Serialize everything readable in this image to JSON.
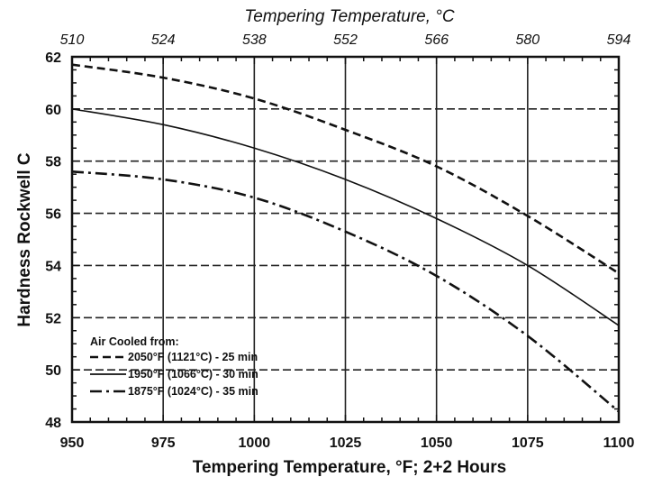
{
  "chart_data": {
    "type": "line",
    "xlabel": "Tempering Temperature, °F; 2+2 Hours",
    "ylabel": "Hardness Rockwell C",
    "top_xlabel": "Tempering Temperature, °C",
    "xlim": [
      950,
      1100
    ],
    "ylim": [
      48,
      62
    ],
    "x_ticks": [
      "950",
      "975",
      "1000",
      "1025",
      "1050",
      "1075",
      "1100"
    ],
    "y_ticks": [
      "48",
      "50",
      "52",
      "54",
      "56",
      "58",
      "60",
      "62"
    ],
    "top_x_ticks": [
      "510",
      "524",
      "538",
      "552",
      "566",
      "580",
      "594"
    ],
    "grid": true,
    "legend_title": "Air Cooled from:",
    "legend_position": "bottom-left",
    "series": [
      {
        "name": "2050°F (1121°C) - 25 min",
        "style": "dashed",
        "x": [
          950,
          975,
          1000,
          1025,
          1050,
          1075,
          1100
        ],
        "y": [
          61.7,
          61.2,
          60.4,
          59.2,
          57.8,
          55.9,
          53.7
        ]
      },
      {
        "name": "1950°F (1066°C) - 30 min",
        "style": "solid",
        "x": [
          950,
          975,
          1000,
          1025,
          1050,
          1075,
          1100
        ],
        "y": [
          60.0,
          59.4,
          58.5,
          57.3,
          55.8,
          54.0,
          51.7
        ]
      },
      {
        "name": "1875°F (1024°C) - 35 min",
        "style": "dash-dot",
        "x": [
          950,
          975,
          1000,
          1025,
          1050,
          1075,
          1100
        ],
        "y": [
          57.6,
          57.3,
          56.6,
          55.3,
          53.6,
          51.3,
          48.4
        ]
      }
    ]
  }
}
